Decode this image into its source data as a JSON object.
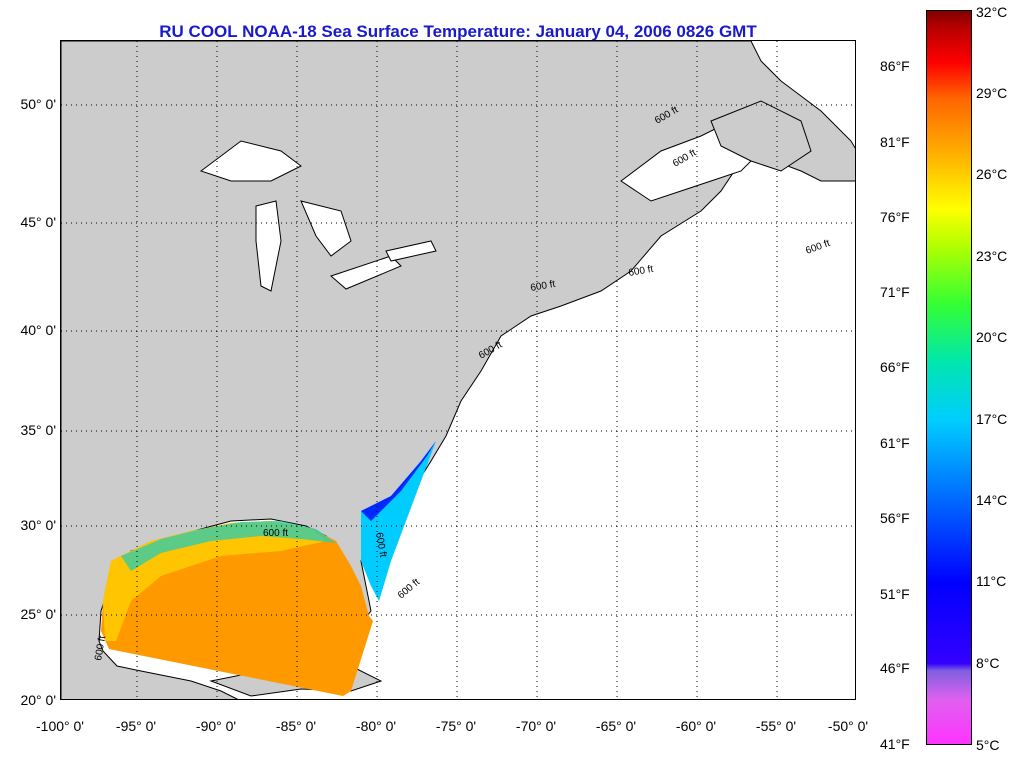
{
  "title": "RU COOL  NOAA-18  Sea Surface Temperature:  January 04, 2006 0826 GMT",
  "lat_labels": [
    "50° 0'",
    "45° 0'",
    "40° 0'",
    "35° 0'",
    "30° 0'",
    "25° 0'",
    "20° 0'"
  ],
  "lon_labels": [
    "-100° 0'",
    "-95° 0'",
    "-90° 0'",
    "-85° 0'",
    "-80° 0'",
    "-75° 0'",
    "-70° 0'",
    "-65° 0'",
    "-60° 0'",
    "-55° 0'",
    "-50° 0'"
  ],
  "colorbar": {
    "fahrenheit": [
      "86°F",
      "81°F",
      "76°F",
      "71°F",
      "66°F",
      "61°F",
      "56°F",
      "51°F",
      "46°F",
      "41°F"
    ],
    "celsius": [
      "32°C",
      "29°C",
      "26°C",
      "23°C",
      "20°C",
      "17°C",
      "14°C",
      "11°C",
      "8°C",
      "5°C"
    ],
    "colors": {
      "min": "#ff33ff",
      "purple": "#8060e0",
      "blue": "#0000ff",
      "cyan": "#00ccff",
      "green": "#33ff33",
      "yellow": "#ffff00",
      "orange": "#ff6600",
      "max": "#800000"
    }
  },
  "contour_labels": [
    "600 ft",
    "600 ft",
    "600 ft",
    "600 ft",
    "600 ft",
    "600 ft",
    "600 ft",
    "600 ft",
    "600 ft",
    "600 ft"
  ],
  "colors": {
    "land": "#cccccc",
    "ocean": "#ffffff",
    "title": "#1a1acc",
    "gulf_sst": "#ff9900",
    "gulf_shelf": "#ffcc00"
  }
}
